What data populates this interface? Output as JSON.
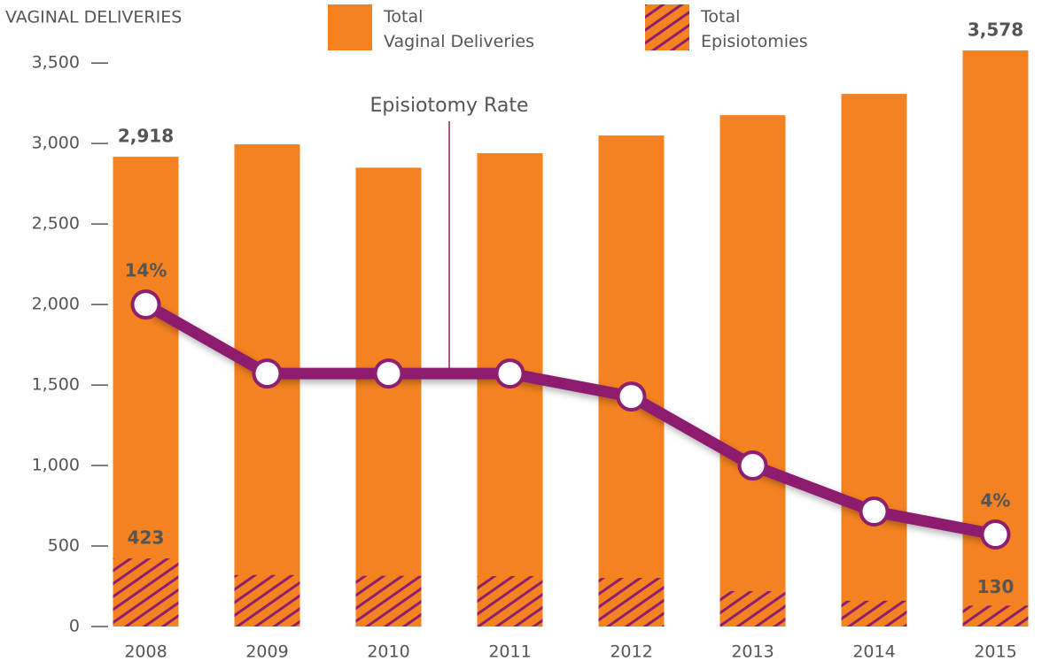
{
  "chart_data": {
    "type": "bar",
    "y_axis_label": "VAGINAL DELIVERIES",
    "annotation": "Episiotomy Rate",
    "categories": [
      "2008",
      "2009",
      "2010",
      "2011",
      "2012",
      "2013",
      "2014",
      "2015"
    ],
    "ylim": [
      0,
      3600
    ],
    "yticks": [
      0,
      500,
      {
        "value": 1000,
        "label": "1,000"
      },
      {
        "value": 1500,
        "label": "1,500"
      },
      {
        "value": 2000,
        "label": "2,000"
      },
      {
        "value": 2500,
        "label": "2,500"
      },
      {
        "value": 3000,
        "label": "3,000"
      },
      {
        "value": 3500,
        "label": "3,500"
      }
    ],
    "y2lim": [
      0,
      25.2
    ],
    "series": [
      {
        "name": "Total Vaginal Deliveries",
        "color": "#f48220",
        "values": [
          2918,
          2995,
          2850,
          2940,
          3050,
          3176,
          3308,
          3578
        ],
        "value_labels": [
          "2,918",
          null,
          null,
          null,
          null,
          null,
          null,
          "3,578"
        ]
      },
      {
        "name": "Total Episiotomies",
        "color": "#8e1f6e",
        "hatch": true,
        "values": [
          423,
          320,
          315,
          313,
          302,
          220,
          160,
          130
        ],
        "value_labels": [
          "423",
          null,
          null,
          null,
          null,
          null,
          null,
          "130"
        ]
      },
      {
        "name": "Episiotomy Rate",
        "type": "line",
        "axis": "y2",
        "color": "#8e1f6e",
        "values": [
          14,
          11,
          11,
          11,
          10,
          7,
          5,
          4
        ],
        "value_labels": [
          "14%",
          null,
          null,
          null,
          null,
          null,
          null,
          "4%"
        ]
      }
    ]
  }
}
